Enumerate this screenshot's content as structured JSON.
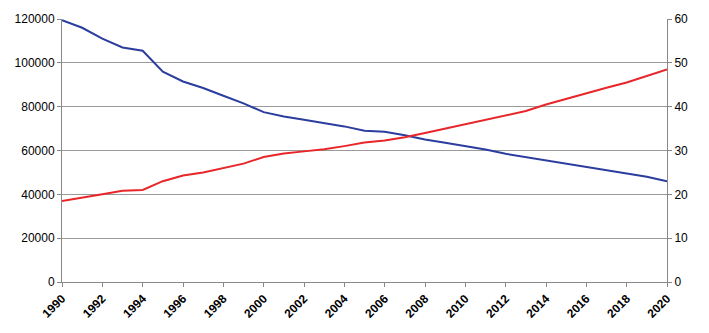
{
  "chart_data": {
    "type": "line",
    "x": [
      1990,
      1991,
      1992,
      1993,
      1994,
      1995,
      1996,
      1997,
      1998,
      1999,
      2000,
      2001,
      2002,
      2003,
      2004,
      2005,
      2006,
      2007,
      2008,
      2009,
      2010,
      2011,
      2012,
      2013,
      2014,
      2015,
      2016,
      2017,
      2018,
      2019,
      2020
    ],
    "series": [
      {
        "color": "#2b3d9e",
        "values": [
          119500,
          116000,
          111000,
          107000,
          105500,
          96000,
          91500,
          88500,
          85000,
          81500,
          77500,
          75500,
          74000,
          72500,
          71000,
          69000,
          68500,
          67000,
          65000,
          63500,
          62000,
          60500,
          58500,
          57000,
          55500,
          54000,
          52500,
          51000,
          49500,
          48000,
          46000
        ]
      },
      {
        "color": "#e8262a",
        "axis": "y2",
        "values": [
          18.5,
          19.2,
          20,
          20.8,
          21,
          23,
          24.3,
          25,
          26,
          27,
          28.5,
          29.3,
          29.8,
          30.3,
          31,
          31.8,
          32.3,
          33,
          34,
          35,
          36,
          37,
          38,
          39,
          40.5,
          41.8,
          43,
          44.3,
          45.5,
          47,
          48.5
        ]
      }
    ],
    "xlim": [
      1990,
      2020
    ],
    "xticks": [
      1990,
      1992,
      1994,
      1996,
      1998,
      2000,
      2002,
      2004,
      2006,
      2008,
      2010,
      2012,
      2014,
      2016,
      2018,
      2020
    ],
    "ylim": [
      0,
      120000
    ],
    "yticks": [
      0,
      20000,
      40000,
      60000,
      80000,
      100000,
      120000
    ],
    "y2lim": [
      0,
      60
    ],
    "y2ticks": [
      0,
      10,
      20,
      30,
      40,
      50,
      60
    ],
    "grid": true
  }
}
